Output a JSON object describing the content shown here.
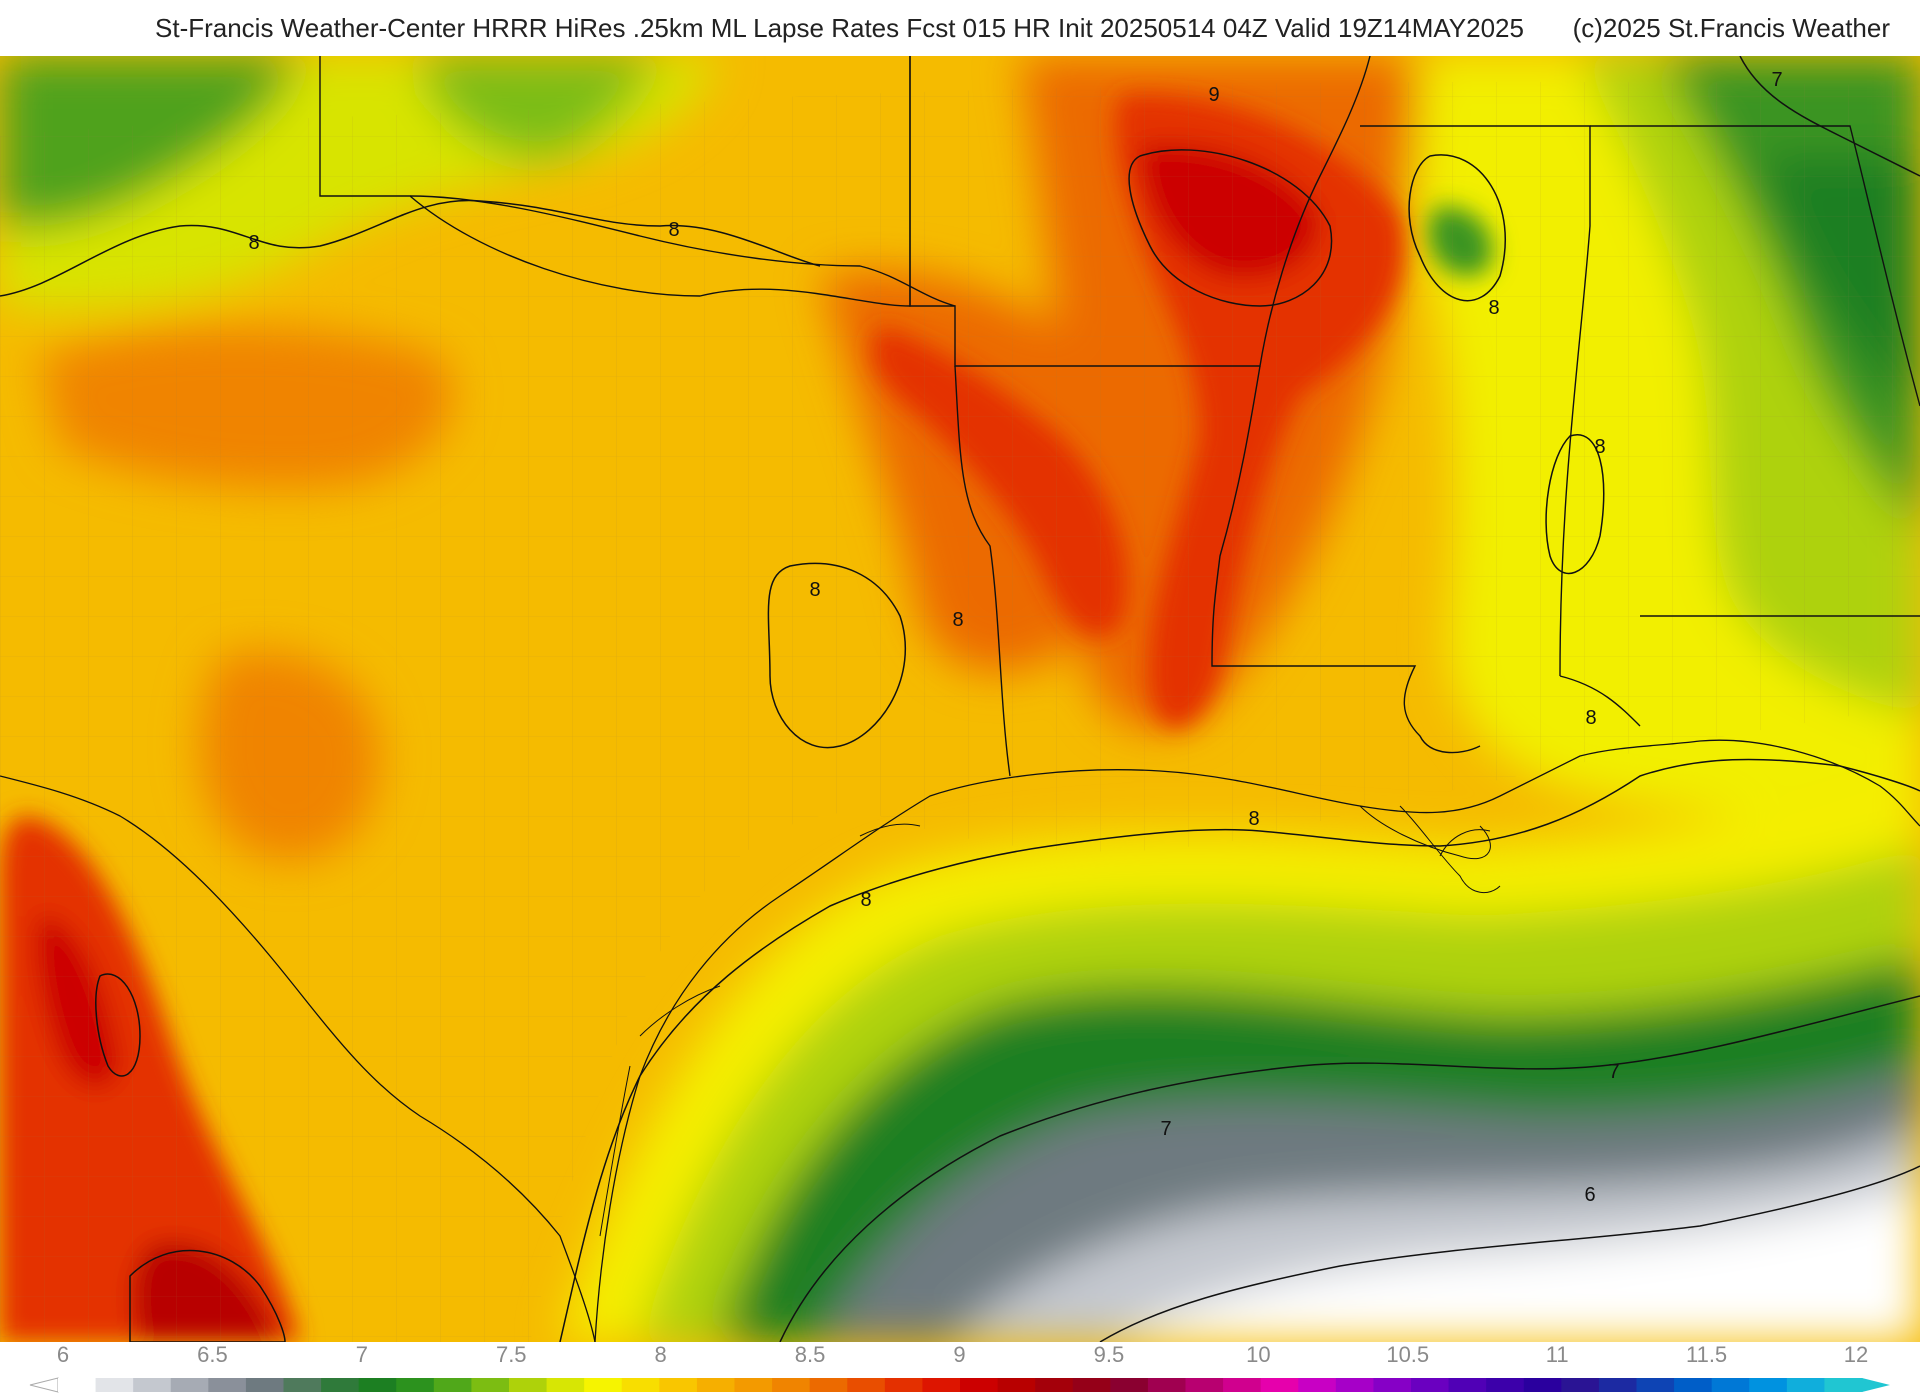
{
  "header": {
    "title": "St-Francis Weather-Center HRRR HiRes .25km ML Lapse Rates  Fcst 015 HR Init 20250514 04Z  Valid 19Z14MAY2025",
    "copyright": "(c)2025 St.Francis Weather"
  },
  "contour_labels": [
    {
      "id": "lbl-9",
      "text": "9"
    },
    {
      "id": "lbl-8a",
      "text": "8"
    },
    {
      "id": "lbl-8b",
      "text": "8"
    },
    {
      "id": "lbl-8c",
      "text": "8"
    },
    {
      "id": "lbl-8d",
      "text": "8"
    },
    {
      "id": "lbl-8e",
      "text": "8"
    },
    {
      "id": "lbl-8f",
      "text": "8"
    },
    {
      "id": "lbl-8g",
      "text": "8"
    },
    {
      "id": "lbl-8h",
      "text": "8"
    },
    {
      "id": "lbl-8i",
      "text": "8"
    },
    {
      "id": "lbl-7a",
      "text": "7"
    },
    {
      "id": "lbl-7b",
      "text": "7"
    },
    {
      "id": "lbl-7c",
      "text": "7"
    },
    {
      "id": "lbl-6",
      "text": "6"
    }
  ],
  "colorbar": {
    "ticks": [
      "6",
      "6.5",
      "7",
      "7.5",
      "8",
      "8.5",
      "9",
      "9.5",
      "10",
      "10.5",
      "11",
      "11.5",
      "12"
    ],
    "colors": [
      "#ffffff",
      "#e2e4e8",
      "#c4c8cf",
      "#a6abb4",
      "#8a909a",
      "#6e7a80",
      "#4f7a5c",
      "#2f7a3a",
      "#1c7f22",
      "#2c921e",
      "#50a81a",
      "#7cbd12",
      "#aed20a",
      "#d7e604",
      "#f6f400",
      "#f8de00",
      "#f9c600",
      "#f6af00",
      "#f39a00",
      "#f08400",
      "#ec6a00",
      "#e94e00",
      "#e43000",
      "#dd1500",
      "#cc0000",
      "#b80000",
      "#a4000a",
      "#950018",
      "#8a0030",
      "#a00050",
      "#b80070",
      "#d0008e",
      "#e600ac",
      "#c800c4",
      "#a600c8",
      "#8600c6",
      "#6a00c0",
      "#5000b6",
      "#3c00aa",
      "#2a009e",
      "#2a1494",
      "#1c2aa2",
      "#0e44b4",
      "#005ec8",
      "#0078d6",
      "#0092e0",
      "#10aedc",
      "#20c6d2"
    ]
  },
  "legend_colors": {
    "white": "#ffffff",
    "grey": "#8a909a",
    "dark_green": "#1c7f22",
    "lime": "#aed20a",
    "yellow": "#f6f400",
    "orange": "#f39a00",
    "red": "#dd1500",
    "dark_red": "#a4000a"
  }
}
